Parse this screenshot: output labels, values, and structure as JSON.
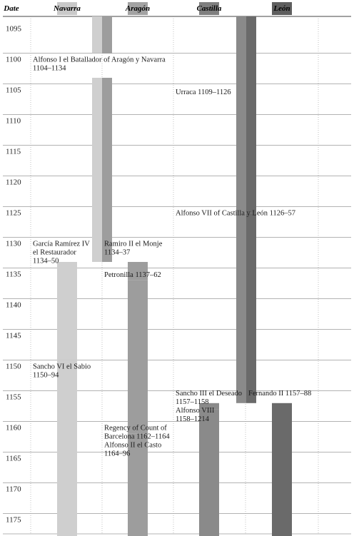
{
  "chart_data": {
    "type": "timeline",
    "columns": [
      {
        "key": "date",
        "label": "Date"
      },
      {
        "key": "navarra",
        "label": "Navarra"
      },
      {
        "key": "aragon",
        "label": "Aragón"
      },
      {
        "key": "castilla",
        "label": "Castilla"
      },
      {
        "key": "leon",
        "label": "León"
      }
    ],
    "year_range": [
      1095,
      1179
    ],
    "years": [
      1095,
      1100,
      1105,
      1110,
      1115,
      1120,
      1125,
      1130,
      1135,
      1140,
      1145,
      1150,
      1155,
      1160,
      1165,
      1170,
      1175
    ],
    "grid": true,
    "bars": [
      {
        "column": "navarra",
        "start": 1094,
        "end": 1100,
        "shade": "light",
        "offset": 0
      },
      {
        "column": "aragon",
        "start": 1094,
        "end": 1100,
        "shade": "mid",
        "offset": 1
      },
      {
        "column": "navarra",
        "start": 1104,
        "end": 1134,
        "shade": "light",
        "offset": 0
      },
      {
        "column": "aragon",
        "start": 1104,
        "end": 1134,
        "shade": "mid",
        "offset": 1
      },
      {
        "column": "castilla",
        "start": 1094,
        "end": 1109,
        "shade": "dark",
        "offset": 0
      },
      {
        "column": "leon",
        "start": 1094,
        "end": 1109,
        "shade": "darker",
        "offset": 1
      },
      {
        "column": "castilla",
        "start": 1109,
        "end": 1126,
        "shade": "dark",
        "offset": 0
      },
      {
        "column": "leon",
        "start": 1109,
        "end": 1126,
        "shade": "darker",
        "offset": 1
      },
      {
        "column": "aragon",
        "start": 1134,
        "end": 1137,
        "shade": "mid",
        "offset": 0
      },
      {
        "column": "castilla",
        "start": 1126,
        "end": 1157,
        "shade": "dark",
        "offset": 0
      },
      {
        "column": "leon",
        "start": 1126,
        "end": 1157,
        "shade": "darker",
        "offset": 1
      },
      {
        "column": "navarra",
        "start": 1134,
        "end": 1150,
        "shade": "light",
        "offset": 0
      },
      {
        "column": "aragon",
        "start": 1137,
        "end": 1162,
        "shade": "mid",
        "offset": 0
      },
      {
        "column": "navarra",
        "start": 1150,
        "end": 1179,
        "shade": "light",
        "offset": 0
      },
      {
        "column": "castilla",
        "start": 1157,
        "end": 1158,
        "shade": "dark",
        "offset": 0
      },
      {
        "column": "castilla",
        "start": 1158,
        "end": 1179,
        "shade": "dark",
        "offset": 0
      },
      {
        "column": "leon",
        "start": 1157,
        "end": 1179,
        "shade": "darker",
        "offset": 0
      },
      {
        "column": "aragon",
        "start": 1162,
        "end": 1179,
        "shade": "mid",
        "offset": 0
      }
    ],
    "labels": [
      {
        "column": "navarra",
        "at": 1100.2,
        "lines": [
          "Alfonso I el Batallador of Aragón y Navarra",
          "1104–1134"
        ]
      },
      {
        "column": "castilla",
        "at": 1105.5,
        "lines": [
          "Urraca 1109–1126"
        ]
      },
      {
        "column": "castilla",
        "at": 1125.2,
        "lines": [
          "Alfonso VII of Castilla y León 1126–57"
        ]
      },
      {
        "column": "navarra",
        "at": 1130.2,
        "lines": [
          "García Ramírez IV",
          "el Restaurador",
          "1134–50"
        ]
      },
      {
        "column": "aragon",
        "at": 1130.2,
        "lines": [
          "Ramiro II el Monje",
          "1134–37"
        ]
      },
      {
        "column": "aragon",
        "at": 1135.3,
        "lines": [
          "Petronilla 1137–62"
        ]
      },
      {
        "column": "navarra",
        "at": 1150.2,
        "lines": [
          "Sancho VI el Sabio",
          "1150–94"
        ]
      },
      {
        "column": "castilla",
        "at": 1154.6,
        "lines": [
          "Sancho III el Deseado",
          "1157–1158",
          "Alfonso VIII",
          "1158–1214"
        ]
      },
      {
        "column": "leon",
        "at": 1154.6,
        "lines": [
          "Fernando II 1157–88"
        ]
      },
      {
        "column": "aragon",
        "at": 1160.2,
        "lines": [
          "Regency of Count of",
          "Barcelona 1162–1164",
          "Alfonso II el Casto",
          "1164–96"
        ]
      }
    ],
    "colors": {
      "light": "#cfcfcf",
      "mid": "#9d9d9d",
      "dark": "#8a8a8a",
      "darker": "#6a6a6a",
      "header_navarra": "#c9c9c9",
      "header_aragon": "#a3a3a3",
      "header_castilla": "#7f7f7f",
      "header_leon": "#5e5e5e",
      "grid": "#9a9a9a",
      "rule": "#444444"
    }
  }
}
